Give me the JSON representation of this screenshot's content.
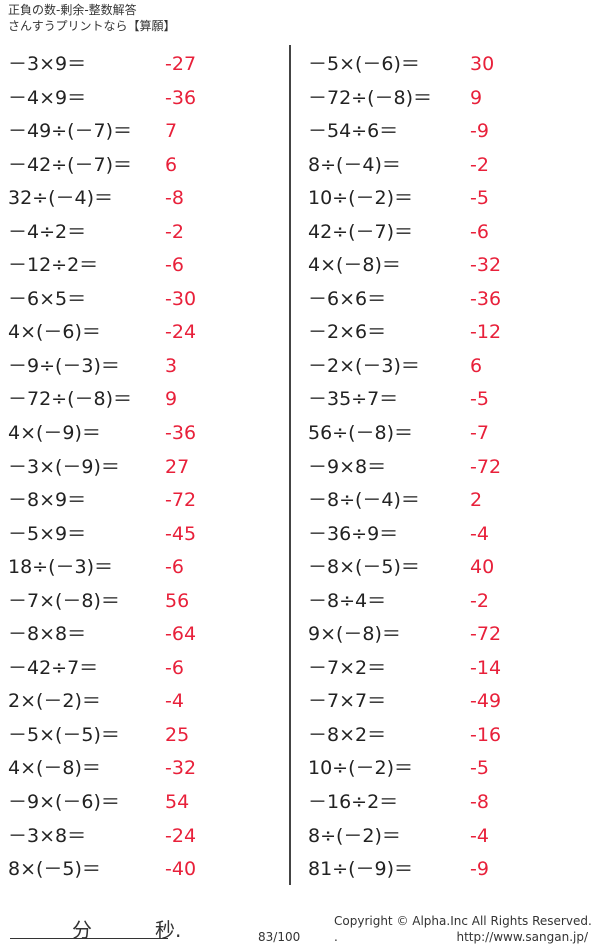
{
  "header": {
    "title": "正負の数-剰余-整数解答",
    "subtitle": "さんすうプリントなら【算願】"
  },
  "left": [
    {
      "q": "－3×9＝",
      "a": "-27"
    },
    {
      "q": "－4×9＝",
      "a": "-36"
    },
    {
      "q": "－49÷(－7)＝",
      "a": "7"
    },
    {
      "q": "－42÷(－7)＝",
      "a": "6"
    },
    {
      "q": "32÷(－4)＝",
      "a": "-8"
    },
    {
      "q": "－4÷2＝",
      "a": "-2"
    },
    {
      "q": "－12÷2＝",
      "a": "-6"
    },
    {
      "q": "－6×5＝",
      "a": "-30"
    },
    {
      "q": "4×(－6)＝",
      "a": "-24"
    },
    {
      "q": "－9÷(－3)＝",
      "a": "3"
    },
    {
      "q": "－72÷(－8)＝",
      "a": "9"
    },
    {
      "q": "4×(－9)＝",
      "a": "-36"
    },
    {
      "q": "－3×(－9)＝",
      "a": "27"
    },
    {
      "q": "－8×9＝",
      "a": "-72"
    },
    {
      "q": "－5×9＝",
      "a": "-45"
    },
    {
      "q": "18÷(－3)＝",
      "a": "-6"
    },
    {
      "q": "－7×(－8)＝",
      "a": "56"
    },
    {
      "q": "－8×8＝",
      "a": "-64"
    },
    {
      "q": "－42÷7＝",
      "a": "-6"
    },
    {
      "q": "2×(－2)＝",
      "a": "-4"
    },
    {
      "q": "－5×(－5)＝",
      "a": "25"
    },
    {
      "q": "4×(－8)＝",
      "a": "-32"
    },
    {
      "q": "－9×(－6)＝",
      "a": "54"
    },
    {
      "q": "－3×8＝",
      "a": "-24"
    },
    {
      "q": "8×(－5)＝",
      "a": "-40"
    }
  ],
  "right": [
    {
      "q": "－5×(－6)＝",
      "a": "30"
    },
    {
      "q": "－72÷(－8)＝",
      "a": "9"
    },
    {
      "q": "－54÷6＝",
      "a": "-9"
    },
    {
      "q": "8÷(－4)＝",
      "a": "-2"
    },
    {
      "q": "10÷(－2)＝",
      "a": "-5"
    },
    {
      "q": "42÷(－7)＝",
      "a": "-6"
    },
    {
      "q": "4×(－8)＝",
      "a": "-32"
    },
    {
      "q": "－6×6＝",
      "a": "-36"
    },
    {
      "q": "－2×6＝",
      "a": "-12"
    },
    {
      "q": "－2×(－3)＝",
      "a": "6"
    },
    {
      "q": "－35÷7＝",
      "a": "-5"
    },
    {
      "q": "56÷(－8)＝",
      "a": "-7"
    },
    {
      "q": "－9×8＝",
      "a": "-72"
    },
    {
      "q": "－8÷(－4)＝",
      "a": "2"
    },
    {
      "q": "－36÷9＝",
      "a": "-4"
    },
    {
      "q": "－8×(－5)＝",
      "a": "40"
    },
    {
      "q": "－8÷4＝",
      "a": "-2"
    },
    {
      "q": "9×(－8)＝",
      "a": "-72"
    },
    {
      "q": "－7×2＝",
      "a": "-14"
    },
    {
      "q": "－7×7＝",
      "a": "-49"
    },
    {
      "q": "－8×2＝",
      "a": "-16"
    },
    {
      "q": "10÷(－2)＝",
      "a": "-5"
    },
    {
      "q": "－16÷2＝",
      "a": "-8"
    },
    {
      "q": "8÷(－2)＝",
      "a": "-4"
    },
    {
      "q": "81÷(－9)＝",
      "a": "-9"
    }
  ],
  "footer": {
    "minutes": "分",
    "seconds": "秒.",
    "page": "83/100",
    "copyright": "Copyright ©  Alpha.Inc All Rights Reserved.",
    "dot": ".",
    "url": "http://www.sangan.jp/"
  },
  "colors": {
    "answer": "#e8203a"
  }
}
